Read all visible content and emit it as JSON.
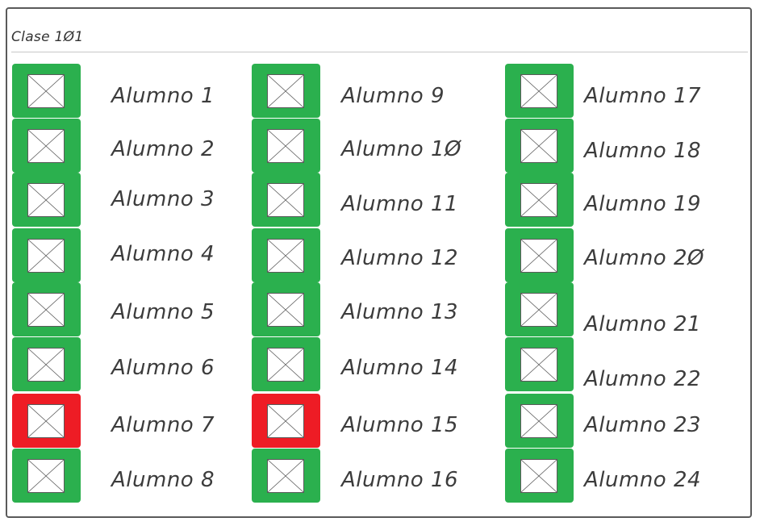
{
  "class_title": "Clase 1Ø1",
  "colors": {
    "present": "#2bb04e",
    "absent": "#ee1c25",
    "border": "#5a5a5a"
  },
  "students": [
    {
      "label": "Alumno 1",
      "status": "present"
    },
    {
      "label": "Alumno 2",
      "status": "present"
    },
    {
      "label": "Alumno 3",
      "status": "present"
    },
    {
      "label": "Alumno 4",
      "status": "present"
    },
    {
      "label": "Alumno 5",
      "status": "present"
    },
    {
      "label": "Alumno 6",
      "status": "present"
    },
    {
      "label": "Alumno 7",
      "status": "absent"
    },
    {
      "label": "Alumno 8",
      "status": "present"
    },
    {
      "label": "Alumno 9",
      "status": "present"
    },
    {
      "label": "Alumno 1Ø",
      "status": "present"
    },
    {
      "label": "Alumno 11",
      "status": "present"
    },
    {
      "label": "Alumno 12",
      "status": "present"
    },
    {
      "label": "Alumno 13",
      "status": "present"
    },
    {
      "label": "Alumno 14",
      "status": "present"
    },
    {
      "label": "Alumno 15",
      "status": "absent"
    },
    {
      "label": "Alumno 16",
      "status": "present"
    },
    {
      "label": "Alumno 17",
      "status": "present"
    },
    {
      "label": "Alumno 18",
      "status": "present"
    },
    {
      "label": "Alumno 19",
      "status": "present"
    },
    {
      "label": "Alumno 2Ø",
      "status": "present"
    },
    {
      "label": "Alumno 21",
      "status": "present"
    },
    {
      "label": "Alumno 22",
      "status": "present"
    },
    {
      "label": "Alumno 23",
      "status": "present"
    },
    {
      "label": "Alumno 24",
      "status": "present"
    }
  ]
}
